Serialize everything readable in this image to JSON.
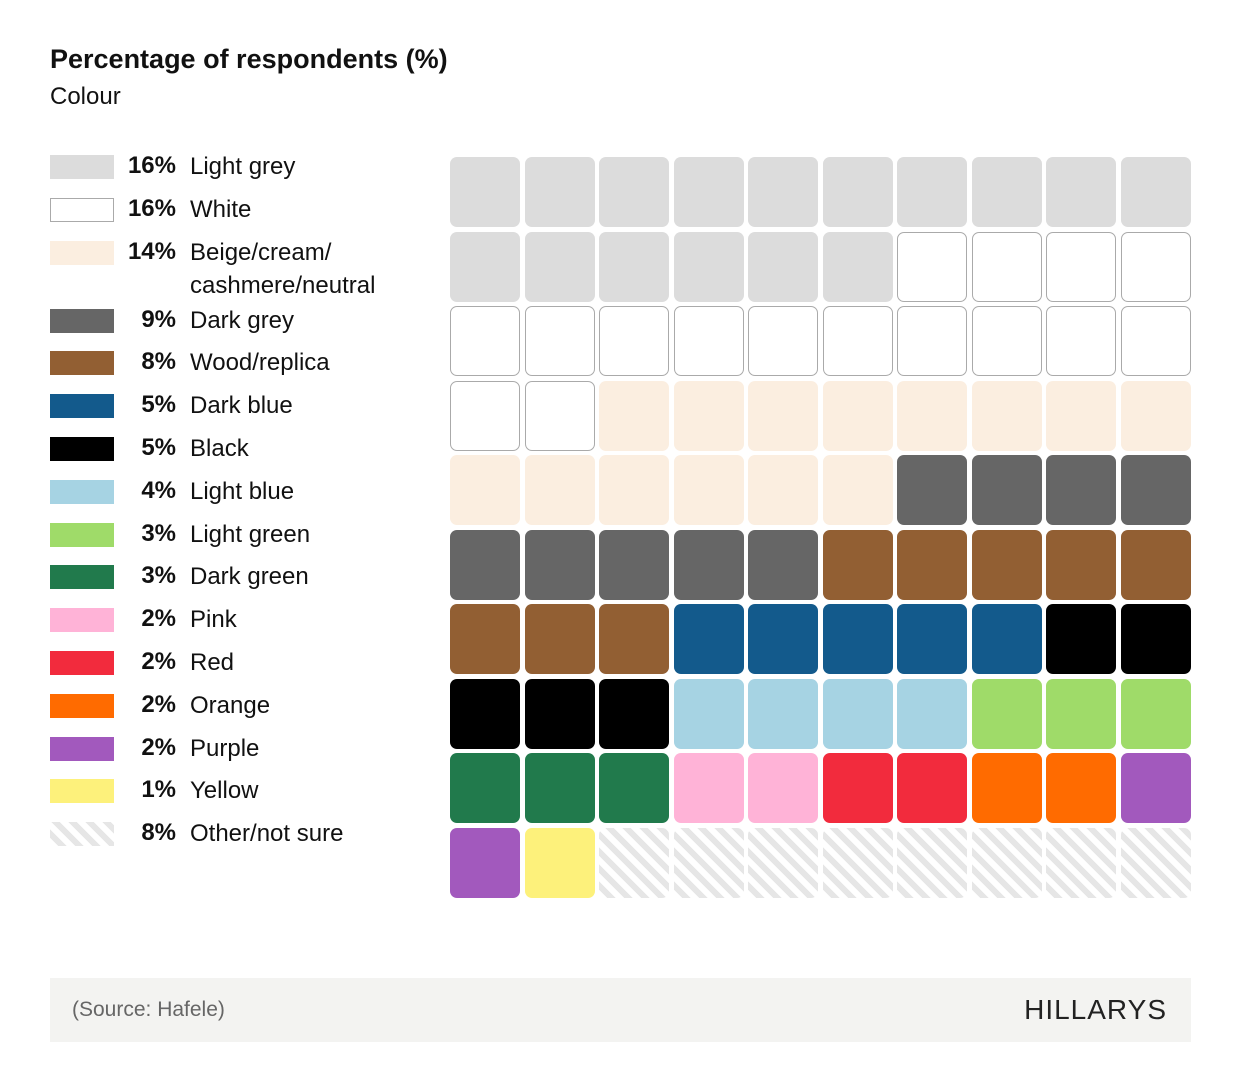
{
  "chart_data": {
    "type": "waffle",
    "title": "Percentage of respondents (%)",
    "subtitle": "Colour",
    "grid": [
      10,
      10
    ],
    "categories": [
      {
        "label": "Light grey",
        "pct_label": "16%",
        "value": 16,
        "color": "#dcdcdc"
      },
      {
        "label": "White",
        "pct_label": "16%",
        "value": 16,
        "color": "#ffffff"
      },
      {
        "label": "Beige/cream/ cashmere/neutral",
        "pct_label": "14%",
        "value": 14,
        "color": "#fbeee0"
      },
      {
        "label": "Dark grey",
        "pct_label": "9%",
        "value": 9,
        "color": "#666666"
      },
      {
        "label": "Wood/replica",
        "pct_label": "8%",
        "value": 8,
        "color": "#925f33"
      },
      {
        "label": "Dark blue",
        "pct_label": "5%",
        "value": 5,
        "color": "#135a8c"
      },
      {
        "label": "Black",
        "pct_label": "5%",
        "value": 5,
        "color": "#000000"
      },
      {
        "label": "Light blue",
        "pct_label": "4%",
        "value": 4,
        "color": "#a6d3e3"
      },
      {
        "label": "Light green",
        "pct_label": "3%",
        "value": 3,
        "color": "#9fdb69"
      },
      {
        "label": "Dark green",
        "pct_label": "3%",
        "value": 3,
        "color": "#217a4c"
      },
      {
        "label": "Pink",
        "pct_label": "2%",
        "value": 2,
        "color": "#ffb3d7"
      },
      {
        "label": "Red",
        "pct_label": "2%",
        "value": 2,
        "color": "#f22b3d"
      },
      {
        "label": "Orange",
        "pct_label": "2%",
        "value": 2,
        "color": "#ff6b00"
      },
      {
        "label": "Purple",
        "pct_label": "2%",
        "value": 2,
        "color": "#a259bd"
      },
      {
        "label": "Yellow",
        "pct_label": "1%",
        "value": 1,
        "color": "#fdf17b"
      },
      {
        "label": "Other/not sure",
        "pct_label": "8%",
        "value": 8,
        "color": "hatched"
      }
    ]
  },
  "footer": {
    "source": "(Source: Hafele)",
    "logo": "HILLARYS"
  }
}
